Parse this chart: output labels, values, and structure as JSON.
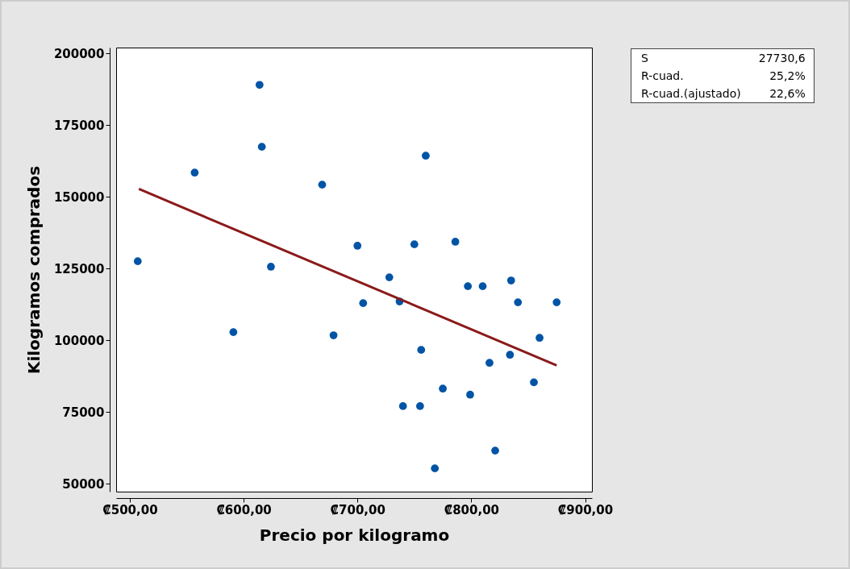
{
  "chart_data": {
    "type": "scatter",
    "xlabel": "Precio por kilogramo",
    "ylabel": "Kilogramos comprados",
    "grid": false,
    "xlim": [
      488,
      906
    ],
    "ylim": [
      47200,
      202000
    ],
    "xticks": [
      {
        "value": 500,
        "label": "₡500,00"
      },
      {
        "value": 600,
        "label": "₡600,00"
      },
      {
        "value": 700,
        "label": "₡700,00"
      },
      {
        "value": 800,
        "label": "₡800,00"
      },
      {
        "value": 900,
        "label": "₡900,00"
      }
    ],
    "yticks": [
      50000,
      75000,
      100000,
      125000,
      150000,
      175000,
      200000
    ],
    "series": [
      {
        "color": "#0054a6",
        "marker": "circle",
        "x": [
          507,
          557,
          591,
          614,
          616,
          624,
          669,
          679,
          700,
          705,
          728,
          737,
          740,
          750,
          756,
          755,
          760,
          768,
          775,
          786,
          797,
          799,
          810,
          816,
          821,
          835,
          834,
          841,
          855,
          860,
          875
        ],
        "values": [
          127500,
          158400,
          102800,
          189000,
          167400,
          125600,
          154200,
          101700,
          132900,
          112900,
          121900,
          113500,
          77000,
          133400,
          96600,
          77000,
          164300,
          55300,
          83100,
          134300,
          118800,
          81000,
          118800,
          92100,
          61500,
          120800,
          94900,
          113200,
          85300,
          100800,
          113200
        ]
      },
      {
        "type": "line",
        "color": "#8b1a1a",
        "x": [
          508,
          875
        ],
        "values": [
          152700,
          91200
        ]
      }
    ],
    "annotations": [
      "S 27730,6",
      "R-cuad. 25,2%",
      "R-cuad.(ajustado) 22,6%"
    ]
  }
}
